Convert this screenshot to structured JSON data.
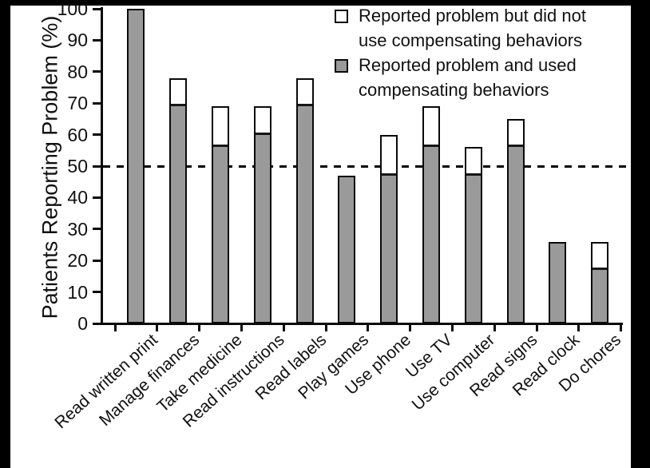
{
  "figure": {
    "background": "#ffffff",
    "frame_color": "#000000",
    "note": "scanned figure with black bands on top, left and right edges"
  },
  "chart_data": {
    "type": "bar",
    "stacked": true,
    "title": "",
    "xlabel": "",
    "ylabel": "Patients Reporting Problem (%)",
    "ylim": [
      0,
      100
    ],
    "yticks": [
      0,
      10,
      20,
      30,
      40,
      50,
      60,
      70,
      80,
      90,
      100
    ],
    "grid": false,
    "reference_line": {
      "y": 50,
      "style": "dashed",
      "color": "#000000"
    },
    "categories": [
      "Read written print",
      "Manage finances",
      "Take medicine",
      "Read instructions",
      "Read labels",
      "Play games",
      "Use phone",
      "Use TV",
      "Use computer",
      "Read signs",
      "Read clock",
      "Do chores"
    ],
    "series": [
      {
        "name": "Reported problem and used compensating behaviors",
        "color": "#9a9a9a",
        "values": [
          100,
          69,
          56,
          60,
          69,
          47,
          47,
          56,
          47,
          56,
          26,
          17
        ]
      },
      {
        "name": "Reported problem but did not use compensating behaviors",
        "color": "#ffffff",
        "values": [
          0,
          9,
          13,
          9,
          9,
          0,
          13,
          13,
          9,
          9,
          0,
          9
        ]
      }
    ],
    "totals": [
      100,
      78,
      69,
      69,
      78,
      47,
      60,
      69,
      56,
      65,
      26,
      26
    ],
    "legend": {
      "position": "top-right",
      "items": [
        {
          "label": "Reported problem but did not use compensating behaviors",
          "lines": [
            "Reported problem but did not",
            "use compensating behaviors"
          ],
          "swatch": "#ffffff"
        },
        {
          "label": "Reported problem and used compensating behaviors",
          "lines": [
            "Reported problem and used",
            "compensating behaviors"
          ],
          "swatch": "#9a9a9a"
        }
      ]
    }
  }
}
